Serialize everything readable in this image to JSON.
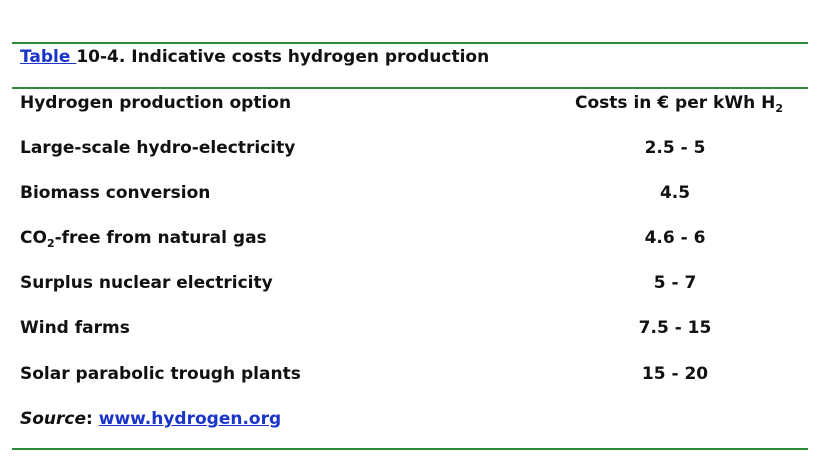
{
  "caption": {
    "link_text": "Table ",
    "text": "10-4. Indicative costs hydrogen production"
  },
  "header": {
    "option": "Hydrogen production option",
    "cost_prefix": "Costs in € per kWh H",
    "cost_sub": "2"
  },
  "rows": [
    {
      "option": "Large-scale hydro-electricity",
      "cost": "2.5 - 5"
    },
    {
      "option": "Biomass conversion",
      "cost": "4.5"
    },
    {
      "option_prefix": "CO",
      "option_sub": "2",
      "option_suffix": "-free from natural gas",
      "cost": "4.6 - 6"
    },
    {
      "option": "Surplus nuclear electricity",
      "cost": "5 - 7"
    },
    {
      "option": "Wind farms",
      "cost": "7.5 - 15"
    },
    {
      "option": "Solar parabolic trough plants",
      "cost": "15 - 20"
    }
  ],
  "source": {
    "label": "Source",
    "colon": ": ",
    "link": "www.hydrogen.org"
  },
  "colors": {
    "rule": "#2f8a3a",
    "link": "#1a35c8",
    "text": "#111111"
  }
}
